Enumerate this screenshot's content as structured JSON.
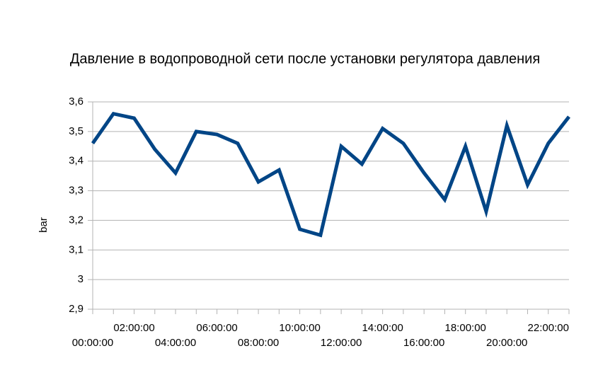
{
  "chart_data": {
    "type": "line",
    "title": "Давление в водопроводной сети после установки регулятора давления",
    "y_label": "bar",
    "categories": [
      "00:00:00",
      null,
      "02:00:00",
      null,
      "04:00:00",
      null,
      "06:00:00",
      null,
      "08:00:00",
      null,
      "10:00:00",
      null,
      "12:00:00",
      null,
      "14:00:00",
      null,
      "16:00:00",
      null,
      "18:00:00",
      null,
      "20:00:00",
      null,
      "22:00:00",
      null
    ],
    "series": [
      {
        "color": "#004586",
        "values": [
          3.46,
          3.56,
          3.545,
          3.44,
          3.36,
          3.5,
          3.49,
          3.46,
          3.33,
          3.37,
          3.17,
          3.15,
          3.45,
          3.39,
          3.51,
          3.46,
          3.36,
          3.27,
          3.45,
          3.23,
          3.52,
          3.32,
          3.46,
          3.55
        ]
      }
    ],
    "ylim": [
      2.9,
      3.6
    ],
    "yticks": [
      {
        "value": 2.9,
        "label": "2,9"
      },
      3,
      {
        "value": 3.1,
        "label": "3,1"
      },
      {
        "value": 3.2,
        "label": "3,2"
      },
      {
        "value": 3.3,
        "label": "3,3"
      },
      {
        "value": 3.4,
        "label": "3,4"
      },
      {
        "value": 3.5,
        "label": "3,5"
      },
      {
        "value": 3.6,
        "label": "3,6"
      }
    ],
    "grid": true
  }
}
